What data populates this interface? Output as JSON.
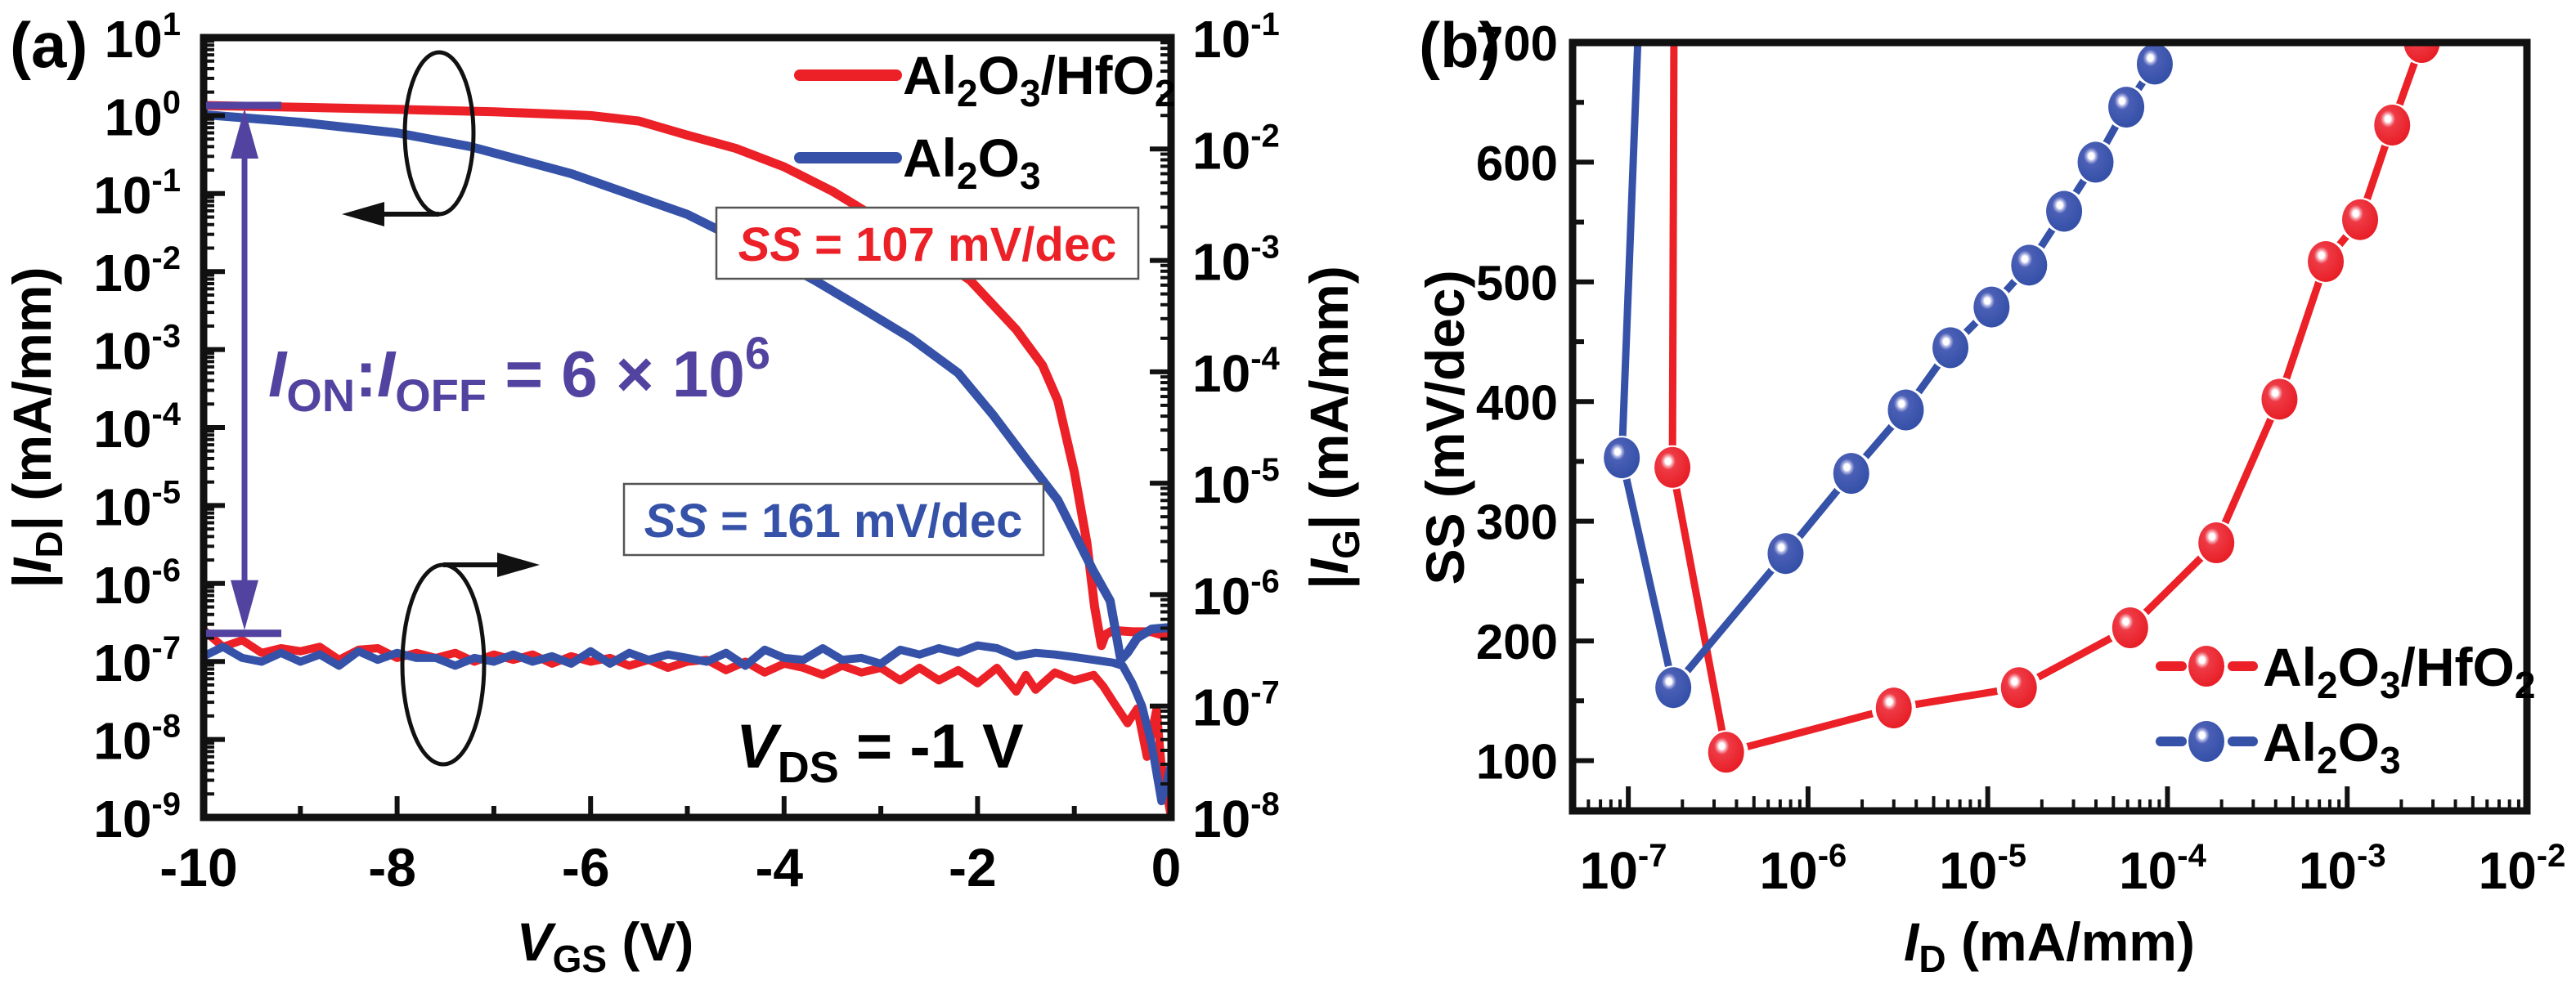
{
  "colors": {
    "red": "#ec2027",
    "blue": "#3552a8",
    "purple": "#5243a0",
    "axis": "#111111"
  },
  "chart_data": [
    {
      "panel_label": "(a)",
      "type": "line",
      "xlabel": {
        "main": "V",
        "sub": "GS",
        "unit": " (V)"
      },
      "ylabel_left": {
        "prefix": "|",
        "main": "I",
        "sub": "D",
        "suffix": "| (mA/mm)"
      },
      "ylabel_right": {
        "prefix": "|",
        "main": "I",
        "sub": "G",
        "suffix": "| (mA/mm)"
      },
      "x_range": [
        -10,
        0
      ],
      "x_ticks": [
        -10,
        -8,
        -6,
        -4,
        -2,
        0
      ],
      "x_tick_labels": [
        "-10",
        "-8",
        "-6",
        "-4",
        "-2",
        "0"
      ],
      "y_left_scale": "log",
      "y_left_range_exp": [
        -9,
        1
      ],
      "y_left_tick_exps": [
        "1",
        "0",
        "-1",
        "-2",
        "-3",
        "-4",
        "-5",
        "-6",
        "-7",
        "-8",
        "-9"
      ],
      "y_right_scale": "log",
      "y_right_range_exp": [
        -8,
        -1
      ],
      "y_right_tick_exps": [
        "-1",
        "-2",
        "-3",
        "-4",
        "-5",
        "-6",
        "-7",
        "-8"
      ],
      "legend": {
        "placement": "top-right",
        "entries": [
          {
            "name_parts": [
              "Al",
              "2",
              "O",
              "3",
              "/HfO",
              "2"
            ],
            "color_key": "red"
          },
          {
            "name_parts": [
              "Al",
              "2",
              "O",
              "3"
            ],
            "color_key": "blue"
          }
        ]
      },
      "series": [
        {
          "name": "Al2O3/HfO2 |ID|",
          "axis": "left",
          "color_key": "red",
          "x": [
            -10,
            -9,
            -8,
            -7,
            -6,
            -5.5,
            -5,
            -4.5,
            -4,
            -3.5,
            -3,
            -2.5,
            -2.08,
            -1.6,
            -1.33,
            -1.17,
            -1.0,
            -0.87,
            -0.79,
            -0.72,
            -0.68,
            -0.6,
            -0.4,
            -0.2,
            -0.1,
            0
          ],
          "y": [
            1.35,
            1.28,
            1.2,
            1.12,
            1.0,
            0.85,
            0.56,
            0.38,
            0.22,
            0.107,
            0.045,
            0.017,
            0.0078,
            0.0018,
            0.00063,
            0.00022,
            2.7e-05,
            3.3e-06,
            5e-07,
            1.6e-07,
            2.2e-07,
            2.5e-07,
            2.4e-07,
            2.4e-07,
            2.2e-07,
            2.1e-07
          ]
        },
        {
          "name": "Al2O3 |ID|",
          "axis": "left",
          "color_key": "blue",
          "x": [
            -10,
            -9,
            -8,
            -7.24,
            -6.2,
            -5,
            -4.3,
            -3.69,
            -3.2,
            -2.69,
            -2.2,
            -1.84,
            -1.5,
            -1.17,
            -0.81,
            -0.63,
            -0.52,
            -0.45,
            -0.35,
            -0.2,
            -0.05,
            0
          ],
          "y": [
            1.03,
            0.82,
            0.6,
            0.4,
            0.18,
            0.054,
            0.02,
            0.0078,
            0.0034,
            0.0014,
            0.0005,
            0.000145,
            4e-05,
            1.17e-05,
            1.5e-06,
            6e-07,
            1.05e-07,
            1.3e-07,
            2e-07,
            2.6e-07,
            2.7e-07,
            2.7e-07
          ]
        },
        {
          "name": "Al2O3/HfO2 |IG|",
          "axis": "right",
          "color_key": "red",
          "x": [
            -10,
            -9.8,
            -9.6,
            -9.4,
            -9.2,
            -9.0,
            -8.8,
            -8.6,
            -8.4,
            -8.2,
            -8.0,
            -7.8,
            -7.6,
            -7.4,
            -7.2,
            -7.0,
            -6.8,
            -6.6,
            -6.4,
            -6.2,
            -6.0,
            -5.8,
            -5.6,
            -5.4,
            -5.2,
            -5.0,
            -4.8,
            -4.6,
            -4.4,
            -4.2,
            -4.0,
            -3.8,
            -3.6,
            -3.4,
            -3.2,
            -3.0,
            -2.8,
            -2.6,
            -2.4,
            -2.2,
            -2.0,
            -1.8,
            -1.6,
            -1.5,
            -1.4,
            -1.2,
            -1.0,
            -0.8,
            -0.7,
            -0.6,
            -0.45,
            -0.35,
            -0.25,
            -0.15,
            -0.1,
            0
          ],
          "y": [
            4.8e-07,
            3.4e-07,
            3.9e-07,
            3e-07,
            3.3e-07,
            3.1e-07,
            3.4e-07,
            2.6e-07,
            3.2e-07,
            3.3e-07,
            2.7e-07,
            3e-07,
            2.7e-07,
            3e-07,
            2.5e-07,
            2.9e-07,
            2.6e-07,
            2.9e-07,
            2.4e-07,
            2.8e-07,
            2.5e-07,
            2.7e-07,
            2.3e-07,
            2.6e-07,
            2.2e-07,
            2.5e-07,
            2.6e-07,
            2.1e-07,
            2.5e-07,
            2e-07,
            2.4e-07,
            2.2e-07,
            1.9e-07,
            2.3e-07,
            2e-07,
            2.2e-07,
            1.7e-07,
            2.2e-07,
            1.7e-07,
            2.1e-07,
            1.6e-07,
            2.2e-07,
            1.35e-07,
            1.9e-07,
            1.4e-07,
            2e-07,
            1.7e-07,
            1.9e-07,
            1.5e-07,
            1.1e-07,
            7e-08,
            9.5e-08,
            3.5e-08,
            9.5e-08,
            3e-08,
            1e-08
          ]
        },
        {
          "name": "Al2O3 |IG|",
          "axis": "right",
          "color_key": "blue",
          "x": [
            -10,
            -9.8,
            -9.6,
            -9.4,
            -9.2,
            -9.0,
            -8.8,
            -8.6,
            -8.4,
            -8.2,
            -8.0,
            -7.8,
            -7.6,
            -7.4,
            -7.2,
            -7.0,
            -6.8,
            -6.6,
            -6.4,
            -6.2,
            -6.0,
            -5.8,
            -5.6,
            -5.4,
            -5.2,
            -5.0,
            -4.8,
            -4.6,
            -4.4,
            -4.2,
            -4.0,
            -3.8,
            -3.6,
            -3.4,
            -3.2,
            -3.0,
            -2.8,
            -2.6,
            -2.4,
            -2.2,
            -2.0,
            -1.8,
            -1.6,
            -1.4,
            -1.2,
            -1.0,
            -0.8,
            -0.6,
            -0.5,
            -0.4,
            -0.3,
            -0.2,
            -0.1,
            -0.05,
            0
          ],
          "y": [
            2.8e-07,
            3.4e-07,
            2.7e-07,
            2.5e-07,
            3e-07,
            2.5e-07,
            2.9e-07,
            2.3e-07,
            3.1e-07,
            2.6e-07,
            3e-07,
            2.7e-07,
            2.7e-07,
            2.3e-07,
            2.7e-07,
            2.5e-07,
            2.9e-07,
            2.5e-07,
            2.8e-07,
            2.4e-07,
            3.1e-07,
            2.4e-07,
            3e-07,
            2.6e-07,
            2.9e-07,
            2.7e-07,
            2.5e-07,
            3e-07,
            2.3e-07,
            3.2e-07,
            2.7e-07,
            2.6e-07,
            3.3e-07,
            2.6e-07,
            2.7e-07,
            2.4e-07,
            3.2e-07,
            2.9e-07,
            3.3e-07,
            3e-07,
            3.5e-07,
            3.3e-07,
            2.8e-07,
            3e-07,
            2.9e-07,
            2.75e-07,
            2.6e-07,
            2.45e-07,
            2.3e-07,
            1.6e-07,
            1e-07,
            4.5e-08,
            1.4e-08,
            2e-08,
            3e-08
          ]
        }
      ],
      "annotations": {
        "on_off_ratio": {
          "i": "I",
          "on": "ON",
          "colon": ":",
          "off": "OFF",
          "eq": " = 6 × 10",
          "exp": "6",
          "value": "6 × 10^6"
        },
        "ss_red": {
          "ss": "SS",
          "rest": " = 107 mV/dec",
          "value_mv_dec": 107
        },
        "ss_blue": {
          "ss": "SS",
          "rest": " = 161 mV/dec",
          "value_mv_dec": 161
        },
        "vds": {
          "main": "V",
          "sub": "DS",
          "rest": " = -1 V"
        },
        "on_level_mA_mm": 1.35,
        "off_level_mA_mm": 2.3e-07,
        "left_ellipse_arrow": "points-left",
        "right_ellipse_arrow": "points-right"
      }
    },
    {
      "panel_label": "(b)",
      "type": "line-scatter",
      "xlabel": {
        "main": "I",
        "sub": "D",
        "unit": " (mA/mm)"
      },
      "ylabel": "SS (mV/dec)",
      "x_scale": "log",
      "x_range_exp": [
        -7.31,
        -2
      ],
      "x_tick_exps": [
        "-7",
        "-6",
        "-5",
        "-4",
        "-3",
        "-2"
      ],
      "y_range": [
        58,
        700
      ],
      "y_ticks": [
        100,
        200,
        300,
        400,
        500,
        600,
        700
      ],
      "y_tick_labels": [
        "100",
        "200",
        "300",
        "400",
        "500",
        "600",
        "700"
      ],
      "legend": {
        "placement": "bottom-right",
        "entries": [
          {
            "name_parts": [
              "Al",
              "2",
              "O",
              "3",
              "/HfO",
              "2"
            ],
            "color_key": "red"
          },
          {
            "name_parts": [
              "Al",
              "2",
              "O",
              "3"
            ],
            "color_key": "blue"
          }
        ]
      },
      "series": [
        {
          "name": "Al2O3/HfO2",
          "color_key": "red",
          "offscale_start": {
            "x": 1.8e-07,
            "y": 760
          },
          "x": [
            1.76e-07,
            3.5e-07,
            3e-06,
            1.49e-05,
            6.2e-05,
            0.000187,
            0.00042,
            0.00076,
            0.00118,
            0.00178,
            0.0026
          ],
          "y": [
            345,
            107,
            144,
            161,
            211,
            282,
            402,
            517,
            552,
            631,
            700
          ]
        },
        {
          "name": "Al2O3",
          "color_key": "blue",
          "offscale_start": {
            "x": 1.17e-07,
            "y": 760
          },
          "x": [
            9.2e-08,
            1.78e-07,
            7.5e-07,
            1.74e-06,
            3.5e-06,
            6.2e-06,
            1.05e-05,
            1.7e-05,
            2.66e-05,
            3.98e-05,
            5.9e-05,
            8.5e-05
          ],
          "y": [
            353,
            161,
            273,
            340,
            393,
            445,
            479,
            514,
            559,
            600,
            646,
            682
          ]
        }
      ]
    }
  ]
}
